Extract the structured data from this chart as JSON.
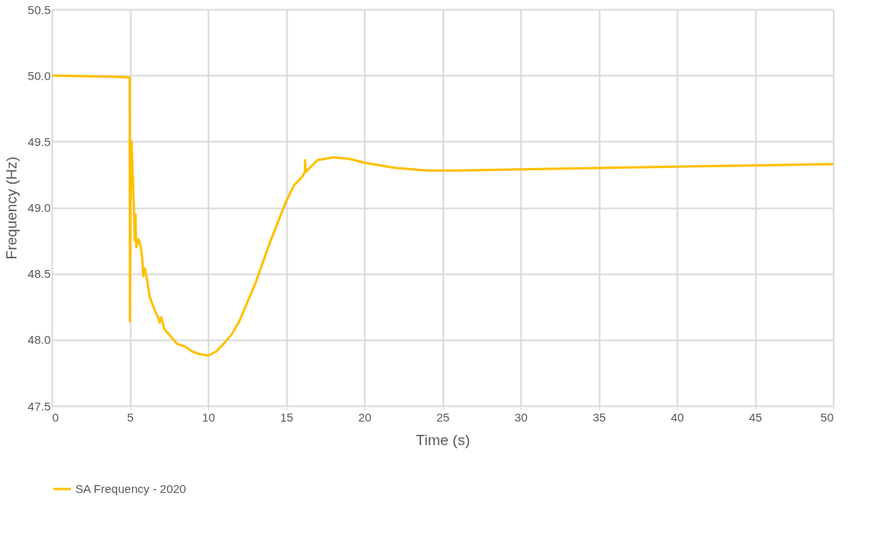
{
  "chart_data": {
    "type": "line",
    "xlabel": "Time (s)",
    "ylabel": "Frequency (Hz)",
    "x": [
      0,
      2,
      4,
      4.98,
      5.0,
      5.03,
      5.1,
      5.25,
      5.3,
      5.35,
      5.4,
      5.55,
      5.7,
      5.8,
      5.85,
      5.95,
      6.1,
      6.25,
      6.4,
      6.6,
      6.8,
      6.9,
      7.0,
      7.2,
      7.5,
      7.8,
      8.0,
      8.5,
      9.0,
      9.5,
      10.0,
      10.5,
      11,
      11.5,
      12,
      13,
      14,
      15,
      15.5,
      16,
      16.2,
      16.2,
      16.25,
      17,
      18,
      19,
      20,
      22,
      24,
      26,
      30,
      35,
      40,
      45,
      50
    ],
    "series": [
      {
        "name": "SA Frequency - 2020",
        "color": "#ffc000",
        "values": [
          50.0,
          49.995,
          49.99,
          49.985,
          48.14,
          49.0,
          49.5,
          49.0,
          48.75,
          48.95,
          48.7,
          48.76,
          48.7,
          48.6,
          48.48,
          48.54,
          48.45,
          48.33,
          48.28,
          48.22,
          48.17,
          48.13,
          48.17,
          48.08,
          48.04,
          48.0,
          47.97,
          47.95,
          47.91,
          47.89,
          47.88,
          47.91,
          47.97,
          48.04,
          48.14,
          48.42,
          48.75,
          49.05,
          49.17,
          49.23,
          49.27,
          49.36,
          49.27,
          49.36,
          49.38,
          49.37,
          49.34,
          49.3,
          49.28,
          49.28,
          49.29,
          49.3,
          49.31,
          49.32,
          49.33
        ]
      }
    ],
    "xlim": [
      0,
      50
    ],
    "xticks": [
      0,
      5,
      10,
      15,
      20,
      25,
      30,
      35,
      40,
      45,
      50
    ],
    "ylim": [
      47.5,
      50.5
    ],
    "yticks": [
      47.5,
      {
        "value": 48,
        "label": "48.0"
      },
      48.5,
      {
        "value": 49,
        "label": "49.0"
      },
      49.5,
      {
        "value": 50,
        "label": "50.0"
      },
      50.5
    ],
    "grid": true,
    "legend": "bottom",
    "marker": "none",
    "line_style": "solid"
  }
}
